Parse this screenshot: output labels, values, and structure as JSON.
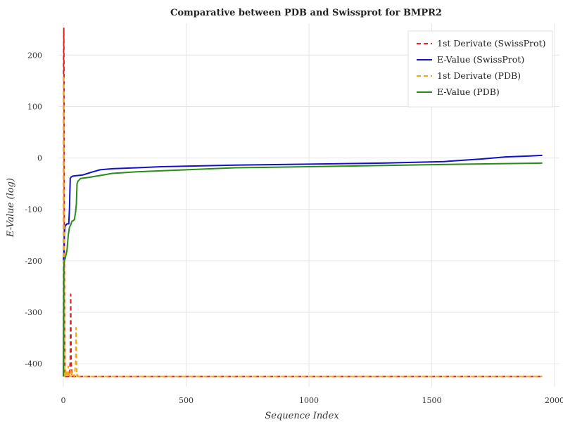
{
  "chart_data": {
    "type": "line",
    "title": "Comparative between PDB and Swissprot for BMPR2",
    "xlabel": "Sequence Index",
    "ylabel": "E-Value (log)",
    "xlim": [
      -20,
      2020
    ],
    "ylim": [
      -445,
      262
    ],
    "xticks": [
      0,
      500,
      1000,
      1500,
      2000
    ],
    "xtick_labels": [
      "0",
      "500",
      "1000",
      "1500",
      "2000"
    ],
    "yticks": [
      200,
      100,
      0,
      -100,
      -200,
      -300,
      -400
    ],
    "ytick_labels": [
      "200",
      "100",
      "0",
      "-100",
      "-200",
      "-300",
      "-400"
    ],
    "grid": true,
    "legend_position": "top-right",
    "series": [
      {
        "name": "1st Derivate (SwissProt)",
        "color": "#dd2222",
        "dash": "dashed",
        "x": [
          0,
          1,
          2,
          3,
          4,
          5,
          6,
          7,
          8,
          10,
          15,
          20,
          25,
          28,
          30,
          32,
          35,
          40,
          60,
          100,
          500,
          1000,
          1500,
          1950
        ],
        "y": [
          -425,
          180,
          252,
          160,
          -150,
          -330,
          -415,
          -420,
          -425,
          -425,
          -425,
          -425,
          -425,
          -395,
          -265,
          -395,
          -425,
          -425,
          -425,
          -425,
          -425,
          -425,
          -425,
          -425
        ]
      },
      {
        "name": "E-Value (SwissProt)",
        "color": "#1111cc",
        "dash": "solid",
        "x": [
          0,
          2,
          4,
          6,
          8,
          10,
          12,
          15,
          18,
          22,
          25,
          28,
          32,
          40,
          60,
          80,
          100,
          120,
          150,
          200,
          300,
          400,
          500,
          700,
          1000,
          1300,
          1550,
          1700,
          1800,
          1900,
          1950
        ],
        "y": [
          -200,
          -190,
          -150,
          -135,
          -132,
          -130,
          -130,
          -128,
          -128,
          -128,
          -100,
          -40,
          -37,
          -35,
          -34,
          -33,
          -30,
          -27,
          -23,
          -21,
          -19,
          -17,
          -16,
          -14,
          -12,
          -10,
          -7,
          -2,
          2,
          4,
          5
        ]
      },
      {
        "name": "1st Derivate (PDB)",
        "color": "#f0a818",
        "dash": "dashed",
        "x": [
          0,
          1,
          2,
          3,
          4,
          5,
          6,
          8,
          10,
          12,
          15,
          18,
          20,
          22,
          25,
          28,
          30,
          35,
          40,
          45,
          50,
          52,
          55,
          57,
          60,
          65,
          100,
          500,
          1000,
          1500,
          1950
        ],
        "y": [
          -425,
          130,
          160,
          50,
          -250,
          -400,
          -425,
          -420,
          -410,
          -425,
          -418,
          -425,
          -405,
          -425,
          -420,
          -425,
          -410,
          -425,
          -422,
          -425,
          -400,
          -330,
          -425,
          -418,
          -425,
          -425,
          -425,
          -425,
          -425,
          -425,
          -425
        ]
      },
      {
        "name": "E-Value (PDB)",
        "color": "#2a8a1a",
        "dash": "solid",
        "x": [
          0,
          2,
          5,
          8,
          10,
          15,
          20,
          25,
          30,
          35,
          40,
          45,
          50,
          53,
          56,
          60,
          70,
          100,
          150,
          200,
          300,
          500,
          700,
          1000,
          1500,
          1950
        ],
        "y": [
          -425,
          -210,
          -198,
          -195,
          -190,
          -180,
          -150,
          -135,
          -130,
          -123,
          -122,
          -120,
          -105,
          -90,
          -50,
          -45,
          -40,
          -38,
          -34,
          -30,
          -27,
          -23,
          -19,
          -17,
          -13,
          -10
        ]
      }
    ]
  }
}
